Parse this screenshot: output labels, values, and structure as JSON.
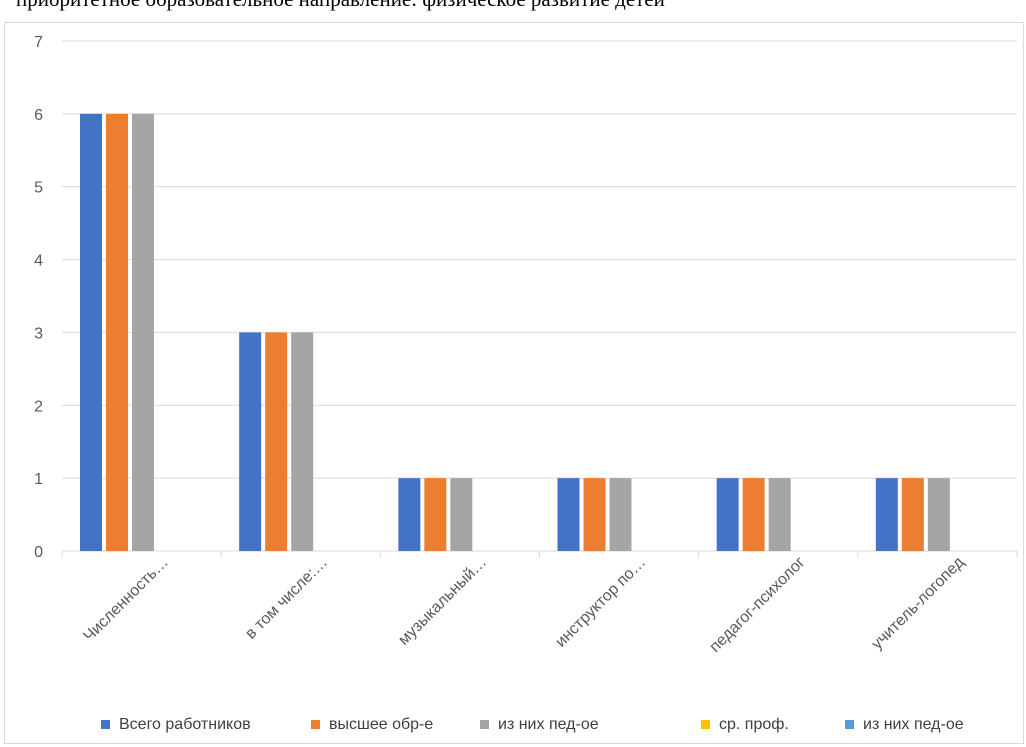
{
  "page": {
    "header_text": "приоритетное образовательное направление: физическое развитие детей"
  },
  "chart_data": {
    "type": "bar",
    "title": "",
    "xlabel": "",
    "ylabel": "",
    "ylim": [
      0,
      7
    ],
    "y_ticks": [
      0,
      1,
      2,
      3,
      4,
      5,
      6,
      7
    ],
    "grid": true,
    "legend_position": "bottom",
    "categories": [
      "Численность…",
      "в том числе:…",
      "музыкальный…",
      "инструктор по…",
      "педагог-психолог",
      "учитель-логопед"
    ],
    "series": [
      {
        "name": "Всего работников",
        "color": "#4472c4",
        "values": [
          6,
          3,
          1,
          1,
          1,
          1
        ]
      },
      {
        "name": "высшее обр-е",
        "color": "#ed7d31",
        "values": [
          6,
          3,
          1,
          1,
          1,
          1
        ]
      },
      {
        "name": "из них пед-ое",
        "color": "#a5a5a5",
        "values": [
          6,
          3,
          1,
          1,
          1,
          1
        ]
      },
      {
        "name": "ср. проф.",
        "color": "#ffc000",
        "values": [
          0,
          0,
          0,
          0,
          0,
          0
        ]
      },
      {
        "name": "из них пед-ое",
        "color": "#5b9bd5",
        "values": [
          0,
          0,
          0,
          0,
          0,
          0
        ]
      }
    ]
  }
}
